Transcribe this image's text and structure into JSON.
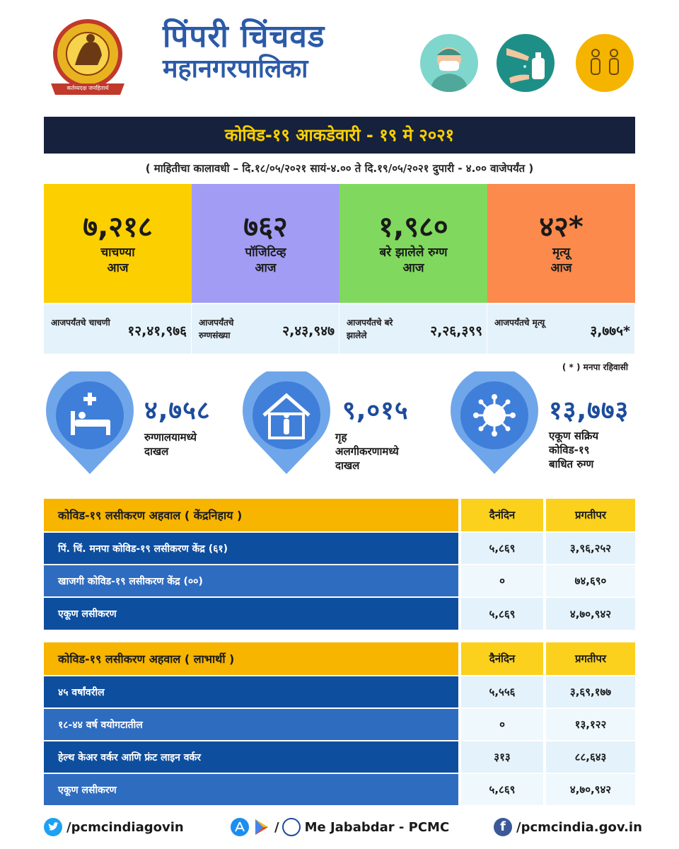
{
  "header": {
    "logo_motto": "कर्तव्यदक्ष जनहितार्थ",
    "brand_line1": "पिंपरी चिंचवड",
    "brand_line2": "महानगरपालिका",
    "icons": [
      "mask-person-icon",
      "hand-sanitizer-icon",
      "social-distance-icon"
    ],
    "colors": {
      "brand": "#2b5aa8",
      "title_bg": "#15213d",
      "title_fg": "#fcd000"
    }
  },
  "title": "कोविड-१९ आकडेवारी - १९ मे २०२१",
  "period": "( माहितीचा कालावधी – दि.१८/०५/२०२१ सायं-४.०० ते दि.१९/०५/२०२१ दुपारी - ४.०० वाजेपर्यंत )",
  "stats": [
    {
      "value": "७,२१८",
      "label1": "चाचण्या",
      "label2": "आज",
      "color": "#fcd000",
      "cum_label": "आजपर्यंतचे चाचणी",
      "cum_value": "१२,४१,९७६"
    },
    {
      "value": "७६२",
      "label1": "पॉजिटिव्ह",
      "label2": "आज",
      "color": "#a29cf4",
      "cum_label": "आजपर्यंतचे रुग्णसंख्या",
      "cum_value": "२,४३,९४७"
    },
    {
      "value": "१,९८०",
      "label1": "बरे झालेले रुग्ण",
      "label2": "आज",
      "color": "#80d95e",
      "cum_label": "आजपर्यंतचे बरे झालेले",
      "cum_value": "२,२६,३९९"
    },
    {
      "value": "४२*",
      "label1": "मृत्यू",
      "label2": "आज",
      "color": "#fc8a4c",
      "cum_label": "आजपर्यंतचे मृत्यू",
      "cum_value": "३,७७५*"
    }
  ],
  "footnote": "( * ) मनपा रहिवासी",
  "pins": [
    {
      "icon": "hospital-bed-icon",
      "value": "४,७५८",
      "label": "रुग्णालयामध्ये\nदाखल"
    },
    {
      "icon": "home-isolation-icon",
      "value": "९,०१५",
      "label": "गृह\nअलगीकरणामध्ये\nदाखल"
    },
    {
      "icon": "virus-icon",
      "value": "१३,७७३",
      "label": "एकूण सक्रिय\nकोविड-१९\nबाधित रुग्ण"
    }
  ],
  "table1": {
    "header": {
      "title": "कोविड-१९ लसीकरण अहवाल ( केंद्रनिहाय )",
      "daily": "दैनंदिन",
      "cumulative": "प्रगतीपर"
    },
    "rows": [
      {
        "label": "पिं. चिं. मनपा कोविड-१९ लसीकरण केंद्र (६१)",
        "daily": "५,८६९",
        "cumulative": "३,९६,२५२"
      },
      {
        "label": "खाजगी कोविड-१९ लसीकरण केंद्र (००)",
        "daily": "०",
        "cumulative": "७४,६९०"
      },
      {
        "label": "एकूण लसीकरण",
        "daily": "५,८६९",
        "cumulative": "४,७०,९४२"
      }
    ]
  },
  "table2": {
    "header": {
      "title": "कोविड-१९ लसीकरण अहवाल ( लाभार्थी )",
      "daily": "दैनंदिन",
      "cumulative": "प्रगतीपर"
    },
    "rows": [
      {
        "label": "४५ वर्षांवरील",
        "daily": "५,५५६",
        "cumulative": "३,६९,१७७"
      },
      {
        "label": "१८-४४ वर्ष वयोगटातील",
        "daily": "०",
        "cumulative": "१३,१२२"
      },
      {
        "label": "हेल्थ केअर वर्कर आणि फ्रंट लाइन वर्कर",
        "daily": "३१३",
        "cumulative": "८८,६४३"
      },
      {
        "label": "एकूण लसीकरण",
        "daily": "५,८६९",
        "cumulative": "४,७०,९४२"
      }
    ]
  },
  "footer": {
    "twitter": "/pcmcindiagovin",
    "app_slash": "/",
    "app_name": "Me Jababdar - PCMC",
    "facebook": "/pcmcindia.gov.in"
  }
}
